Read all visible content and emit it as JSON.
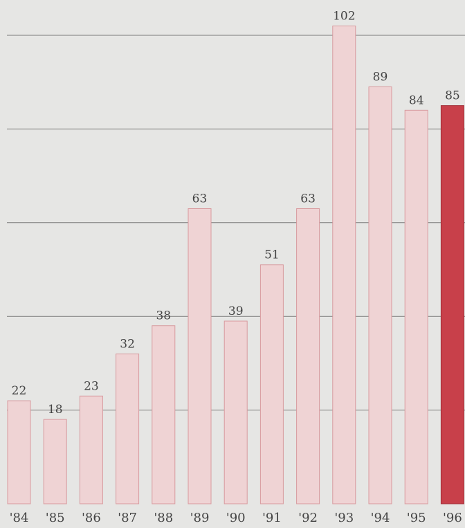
{
  "chart_data": {
    "type": "bar",
    "categories": [
      "'84",
      "'85",
      "'86",
      "'87",
      "'88",
      "'89",
      "'90",
      "'91",
      "'92",
      "'93",
      "'94",
      "'95",
      "'96"
    ],
    "values": [
      22,
      18,
      23,
      32,
      38,
      63,
      39,
      51,
      63,
      102,
      89,
      84,
      85
    ],
    "data_labels": [
      "22",
      "18",
      "23",
      "32",
      "38",
      "63",
      "39",
      "51",
      "63",
      "102",
      "89",
      "84",
      "85"
    ],
    "highlight_index": 12,
    "ylim": [
      0,
      107
    ],
    "gridlines": [
      20,
      40,
      60,
      80,
      100
    ],
    "grid": true,
    "colors": {
      "bar": "#efd3d4",
      "bar_stroke": "#d89a9e",
      "highlight": "#c8404a",
      "highlight_stroke": "#a22c35",
      "background": "#e6e6e4"
    }
  }
}
